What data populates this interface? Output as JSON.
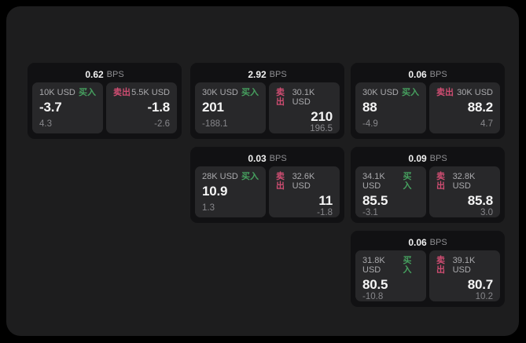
{
  "labels": {
    "bps": "BPS",
    "buy": "买入",
    "sell": "卖出"
  },
  "colors": {
    "page_bg": "#000000",
    "panel_bg": "#1d1d1e",
    "card_bg": "#111113",
    "quote_bg": "#28282a",
    "buy_green": "#46a05f",
    "sell_red": "#cf4d72",
    "value_white": "#f5f5f5",
    "muted_gray": "#87878b"
  },
  "cards": [
    {
      "bps": "0.62",
      "buy": {
        "amount": "10K USD",
        "value": "-3.7",
        "delta": "4.3"
      },
      "sell": {
        "amount": "5.5K USD",
        "value": "-1.8",
        "delta": "-2.6"
      }
    },
    {
      "bps": "2.92",
      "buy": {
        "amount": "30K USD",
        "value": "201",
        "delta": "-188.1"
      },
      "sell": {
        "amount": "30.1K USD",
        "value": "210",
        "delta": "196.5"
      }
    },
    {
      "bps": "0.06",
      "buy": {
        "amount": "30K USD",
        "value": "88",
        "delta": "-4.9"
      },
      "sell": {
        "amount": "30K USD",
        "value": "88.2",
        "delta": "4.7"
      }
    },
    {
      "bps": "0.03",
      "buy": {
        "amount": "28K USD",
        "value": "10.9",
        "delta": "1.3"
      },
      "sell": {
        "amount": "32.6K USD",
        "value": "11",
        "delta": "-1.8"
      }
    },
    {
      "bps": "0.09",
      "buy": {
        "amount": "34.1K USD",
        "value": "85.5",
        "delta": "-3.1"
      },
      "sell": {
        "amount": "32.8K USD",
        "value": "85.8",
        "delta": "3.0"
      }
    },
    {
      "bps": "0.06",
      "buy": {
        "amount": "31.8K USD",
        "value": "80.5",
        "delta": "-10.8"
      },
      "sell": {
        "amount": "39.1K USD",
        "value": "80.7",
        "delta": "10.2"
      }
    }
  ]
}
